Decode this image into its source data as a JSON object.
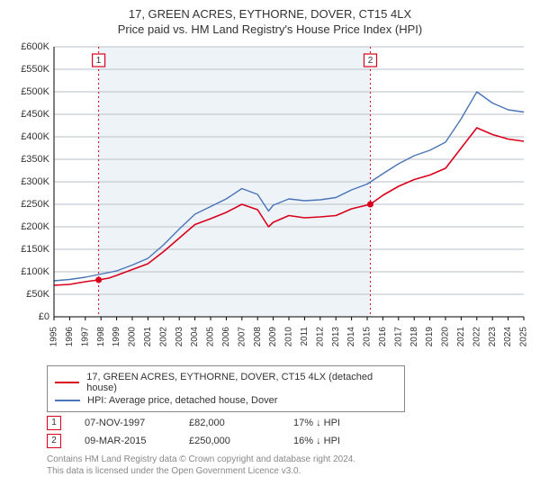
{
  "title_line1": "17, GREEN ACRES, EYTHORNE, DOVER, CT15 4LX",
  "title_line2": "Price paid vs. HM Land Registry's House Price Index (HPI)",
  "chart": {
    "type": "line",
    "background_color": "#ffffff",
    "grid_color": "#b8c0c8",
    "axis_color": "#000000",
    "plot_shade_color": "#eef3f8",
    "y_axis": {
      "min": 0,
      "max": 600,
      "tick_step": 50,
      "labels": [
        "£0",
        "£50K",
        "£100K",
        "£150K",
        "£200K",
        "£250K",
        "£300K",
        "£350K",
        "£400K",
        "£450K",
        "£500K",
        "£550K",
        "£600K"
      ]
    },
    "x_axis": {
      "years": [
        1995,
        1996,
        1997,
        1998,
        1999,
        2000,
        2001,
        2002,
        2003,
        2004,
        2005,
        2006,
        2007,
        2008,
        2009,
        2010,
        2011,
        2012,
        2013,
        2014,
        2015,
        2016,
        2017,
        2018,
        2019,
        2020,
        2021,
        2022,
        2023,
        2024,
        2025
      ]
    },
    "shade_start_year": 1997.85,
    "shade_end_year": 2015.2,
    "series": [
      {
        "name": "property",
        "label": "17, GREEN ACRES, EYTHORNE, DOVER, CT15 4LX (detached house)",
        "color": "#d9001b",
        "line_width": 1.6,
        "data": [
          [
            1995,
            70
          ],
          [
            1996,
            72
          ],
          [
            1997,
            78
          ],
          [
            1997.85,
            82
          ],
          [
            1998.5,
            86
          ],
          [
            1999,
            92
          ],
          [
            2000,
            105
          ],
          [
            2001,
            118
          ],
          [
            2002,
            145
          ],
          [
            2003,
            175
          ],
          [
            2004,
            205
          ],
          [
            2005,
            218
          ],
          [
            2006,
            232
          ],
          [
            2007,
            250
          ],
          [
            2008,
            238
          ],
          [
            2008.7,
            200
          ],
          [
            2009,
            210
          ],
          [
            2010,
            225
          ],
          [
            2011,
            220
          ],
          [
            2012,
            222
          ],
          [
            2013,
            225
          ],
          [
            2014,
            240
          ],
          [
            2015.2,
            250
          ],
          [
            2016,
            270
          ],
          [
            2017,
            290
          ],
          [
            2018,
            305
          ],
          [
            2019,
            315
          ],
          [
            2020,
            330
          ],
          [
            2021,
            375
          ],
          [
            2022,
            420
          ],
          [
            2023,
            405
          ],
          [
            2024,
            395
          ],
          [
            2025,
            390
          ]
        ]
      },
      {
        "name": "hpi",
        "label": "HPI: Average price, detached house, Dover",
        "color": "#4a74b8",
        "line_width": 1.4,
        "data": [
          [
            1995,
            80
          ],
          [
            1996,
            83
          ],
          [
            1997,
            88
          ],
          [
            1998,
            95
          ],
          [
            1999,
            102
          ],
          [
            2000,
            115
          ],
          [
            2001,
            130
          ],
          [
            2002,
            160
          ],
          [
            2003,
            195
          ],
          [
            2004,
            228
          ],
          [
            2005,
            245
          ],
          [
            2006,
            262
          ],
          [
            2007,
            285
          ],
          [
            2008,
            272
          ],
          [
            2008.7,
            235
          ],
          [
            2009,
            248
          ],
          [
            2010,
            262
          ],
          [
            2011,
            258
          ],
          [
            2012,
            260
          ],
          [
            2013,
            265
          ],
          [
            2014,
            282
          ],
          [
            2015,
            295
          ],
          [
            2016,
            318
          ],
          [
            2017,
            340
          ],
          [
            2018,
            358
          ],
          [
            2019,
            370
          ],
          [
            2020,
            388
          ],
          [
            2021,
            440
          ],
          [
            2022,
            500
          ],
          [
            2023,
            475
          ],
          [
            2024,
            460
          ],
          [
            2025,
            455
          ]
        ]
      }
    ],
    "sale_markers": [
      {
        "n": "1",
        "year": 1997.85,
        "price": 82,
        "color": "#d9001b"
      },
      {
        "n": "2",
        "year": 2015.2,
        "price": 250,
        "color": "#d9001b"
      }
    ]
  },
  "legend": [
    {
      "color": "#d9001b",
      "label": "17, GREEN ACRES, EYTHORNE, DOVER, CT15 4LX (detached house)"
    },
    {
      "color": "#4a74b8",
      "label": "HPI: Average price, detached house, Dover"
    }
  ],
  "sales": [
    {
      "n": "1",
      "color": "#d9001b",
      "date": "07-NOV-1997",
      "price": "£82,000",
      "delta": "17% ↓ HPI"
    },
    {
      "n": "2",
      "color": "#d9001b",
      "date": "09-MAR-2015",
      "price": "£250,000",
      "delta": "16% ↓ HPI"
    }
  ],
  "footnote_line1": "Contains HM Land Registry data © Crown copyright and database right 2024.",
  "footnote_line2": "This data is licensed under the Open Government Licence v3.0."
}
